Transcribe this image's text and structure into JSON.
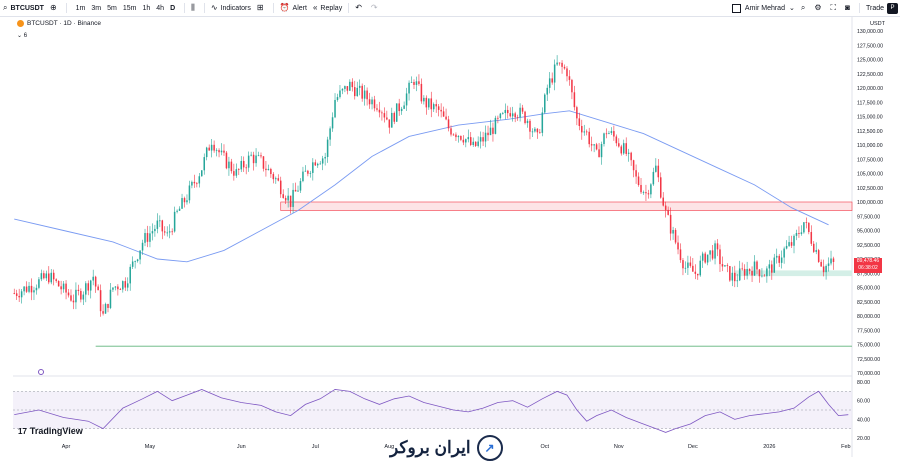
{
  "toolbar": {
    "symbol": "BTCUSDT",
    "timeframes": [
      "1m",
      "3m",
      "5m",
      "15m",
      "1h",
      "4h",
      "D"
    ],
    "active_timeframe": "D",
    "indicators_label": "Indicators",
    "alert_label": "Alert",
    "replay_label": "Replay",
    "user_name": "Amir Mehrad",
    "trade_label": "Trade",
    "avatar_initial": "P"
  },
  "legend": {
    "title": "BTCUSDT · 1D · Binance",
    "counter": "6"
  },
  "axis_currency": "USDT",
  "price_tag": {
    "price": "89,478.46",
    "countdown": "06:38:02"
  },
  "watermarks": {
    "tradingview": "TradingView",
    "broker": "ایران بروکر"
  },
  "colors": {
    "up": "#26a69a",
    "down": "#f23645",
    "ma": "#7a9bf2",
    "rsi": "#7e57c2",
    "support": "#7dc7b3",
    "resistance": "#f7b8bd"
  },
  "chart_data": {
    "type": "candlestick",
    "symbol": "BTCUSDT",
    "timeframe": "1D",
    "exchange": "Binance",
    "ylim": [
      70000,
      130000
    ],
    "y_ticks": [
      "130,000.00",
      "127,500.00",
      "125,000.00",
      "122,500.00",
      "120,000.00",
      "117,500.00",
      "115,000.00",
      "112,500.00",
      "110,000.00",
      "107,500.00",
      "105,000.00",
      "102,500.00",
      "100,000.00",
      "97,500.00",
      "95,000.00",
      "92,500.00",
      "90,000.00",
      "87,500.00",
      "85,000.00",
      "82,500.00",
      "80,000.00",
      "77,500.00",
      "75,000.00",
      "72,500.00",
      "70,000.00"
    ],
    "x_labels": [
      "Apr",
      "May",
      "Jun",
      "Jul",
      "Aug",
      "Oct",
      "Nov",
      "Dec",
      "2026",
      "Feb"
    ],
    "x_label_index": [
      21,
      55,
      92,
      122,
      152,
      215,
      245,
      275,
      306,
      337
    ],
    "total_days": 340,
    "path_points": [
      [
        0,
        84000
      ],
      [
        8,
        85500
      ],
      [
        14,
        87000
      ],
      [
        20,
        84500
      ],
      [
        24,
        83000
      ],
      [
        28,
        84500
      ],
      [
        32,
        87000
      ],
      [
        36,
        80000
      ],
      [
        40,
        85000
      ],
      [
        45,
        86000
      ],
      [
        52,
        93000
      ],
      [
        58,
        96000
      ],
      [
        62,
        94000
      ],
      [
        66,
        98000
      ],
      [
        70,
        101000
      ],
      [
        76,
        106000
      ],
      [
        80,
        111000
      ],
      [
        84,
        108000
      ],
      [
        90,
        105000
      ],
      [
        96,
        108000
      ],
      [
        100,
        107000
      ],
      [
        106,
        104000
      ],
      [
        112,
        100000
      ],
      [
        118,
        105000
      ],
      [
        122,
        107500
      ],
      [
        126,
        108000
      ],
      [
        130,
        118000
      ],
      [
        136,
        120500
      ],
      [
        142,
        118500
      ],
      [
        148,
        117000
      ],
      [
        152,
        114000
      ],
      [
        158,
        118000
      ],
      [
        162,
        121500
      ],
      [
        166,
        117500
      ],
      [
        172,
        116000
      ],
      [
        176,
        113000
      ],
      [
        182,
        111500
      ],
      [
        186,
        109500
      ],
      [
        190,
        111000
      ],
      [
        196,
        114000
      ],
      [
        202,
        116500
      ],
      [
        208,
        114500
      ],
      [
        212,
        111000
      ],
      [
        216,
        120000
      ],
      [
        220,
        124000
      ],
      [
        224,
        123000
      ],
      [
        228,
        114500
      ],
      [
        232,
        112000
      ],
      [
        236,
        108000
      ],
      [
        240,
        112500
      ],
      [
        244,
        111000
      ],
      [
        248,
        108500
      ],
      [
        252,
        104000
      ],
      [
        256,
        101500
      ],
      [
        260,
        106000
      ],
      [
        264,
        98000
      ],
      [
        268,
        93000
      ],
      [
        272,
        88500
      ],
      [
        276,
        87500
      ],
      [
        280,
        90500
      ],
      [
        284,
        91500
      ],
      [
        288,
        88000
      ],
      [
        292,
        86500
      ],
      [
        296,
        88000
      ],
      [
        300,
        88500
      ],
      [
        304,
        87500
      ],
      [
        308,
        89000
      ],
      [
        312,
        91500
      ],
      [
        316,
        93000
      ],
      [
        320,
        96500
      ],
      [
        324,
        92500
      ],
      [
        328,
        88500
      ],
      [
        332,
        89478
      ]
    ],
    "candle_count": 332,
    "ma": [
      [
        0,
        97000
      ],
      [
        20,
        95000
      ],
      [
        40,
        93000
      ],
      [
        58,
        90000
      ],
      [
        70,
        89500
      ],
      [
        85,
        91500
      ],
      [
        100,
        95000
      ],
      [
        115,
        98500
      ],
      [
        130,
        103000
      ],
      [
        145,
        108000
      ],
      [
        160,
        111500
      ],
      [
        180,
        113500
      ],
      [
        200,
        114500
      ],
      [
        215,
        115500
      ],
      [
        225,
        116000
      ],
      [
        240,
        114000
      ],
      [
        255,
        112000
      ],
      [
        270,
        109000
      ],
      [
        285,
        106000
      ],
      [
        300,
        103000
      ],
      [
        315,
        99000
      ],
      [
        330,
        96000
      ]
    ],
    "resistance_zone": {
      "from": 98500,
      "to": 100000,
      "start_index": 108,
      "end_index": 340
    },
    "support_zone": {
      "from": 87000,
      "to": 88000,
      "start_index": 292,
      "end_index": 340
    },
    "support_line": {
      "value": 74700,
      "start_index": 33,
      "end_index": 340
    },
    "rsi": {
      "ylim": [
        20,
        80
      ],
      "ticks": [
        "80.00",
        "60.00",
        "40.00",
        "20.00"
      ],
      "levels": [
        70,
        50,
        30
      ],
      "values": [
        [
          0,
          45
        ],
        [
          10,
          50
        ],
        [
          20,
          42
        ],
        [
          30,
          38
        ],
        [
          36,
          30
        ],
        [
          44,
          52
        ],
        [
          52,
          62
        ],
        [
          58,
          70
        ],
        [
          64,
          60
        ],
        [
          70,
          66
        ],
        [
          76,
          72
        ],
        [
          84,
          63
        ],
        [
          92,
          58
        ],
        [
          100,
          55
        ],
        [
          106,
          48
        ],
        [
          112,
          44
        ],
        [
          118,
          56
        ],
        [
          124,
          62
        ],
        [
          130,
          72
        ],
        [
          136,
          70
        ],
        [
          142,
          62
        ],
        [
          148,
          56
        ],
        [
          154,
          62
        ],
        [
          160,
          65
        ],
        [
          166,
          58
        ],
        [
          172,
          54
        ],
        [
          178,
          50
        ],
        [
          184,
          48
        ],
        [
          190,
          52
        ],
        [
          196,
          58
        ],
        [
          202,
          60
        ],
        [
          208,
          53
        ],
        [
          214,
          62
        ],
        [
          220,
          70
        ],
        [
          224,
          66
        ],
        [
          228,
          50
        ],
        [
          232,
          38
        ],
        [
          236,
          44
        ],
        [
          242,
          50
        ],
        [
          248,
          42
        ],
        [
          254,
          36
        ],
        [
          260,
          30
        ],
        [
          264,
          26
        ],
        [
          268,
          30
        ],
        [
          274,
          35
        ],
        [
          280,
          44
        ],
        [
          286,
          48
        ],
        [
          292,
          40
        ],
        [
          298,
          44
        ],
        [
          304,
          46
        ],
        [
          310,
          48
        ],
        [
          316,
          52
        ],
        [
          322,
          64
        ],
        [
          326,
          70
        ],
        [
          330,
          56
        ],
        [
          334,
          44
        ],
        [
          338,
          45
        ]
      ]
    }
  }
}
